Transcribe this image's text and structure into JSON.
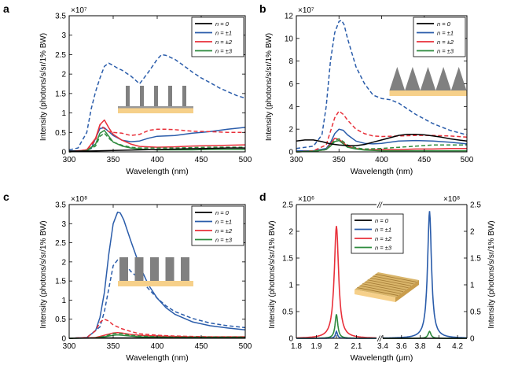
{
  "panels": {
    "a": {
      "letter": "a"
    },
    "b": {
      "letter": "b"
    },
    "c": {
      "letter": "c"
    },
    "d": {
      "letter": "d"
    }
  },
  "colors": {
    "n0": "#000000",
    "n1": "#2a5caa",
    "n2": "#e8303a",
    "n3": "#2e8b3e",
    "substrate": "#f6d08a",
    "structure": "#808080"
  },
  "chart_data": [
    {
      "id": "a",
      "type": "line",
      "xlabel": "Wavelength (nm)",
      "ylabel": "Intensity (photons/s/sr/1% BW)",
      "exponent": "×10⁷",
      "xlim": [
        300,
        500
      ],
      "ylim": [
        0,
        3.5
      ],
      "xticks": [
        "300",
        "350",
        "400",
        "450",
        "500"
      ],
      "yticks": [
        "0",
        "0.5",
        "1",
        "1.5",
        "2",
        "2.5",
        "3",
        "3.5"
      ],
      "legend": [
        "n = 0",
        "n = ±1",
        "n = ±2",
        "n = ±3"
      ],
      "legend_position": "top-right",
      "inset": "nanopillars",
      "series": [
        {
          "key": "n1",
          "dash": true,
          "x": [
            300,
            310,
            320,
            325,
            330,
            335,
            340,
            345,
            350,
            355,
            360,
            370,
            380,
            390,
            400,
            405,
            410,
            420,
            430,
            440,
            450,
            460,
            470,
            480,
            490,
            500
          ],
          "y": [
            0.05,
            0.1,
            0.5,
            1.1,
            1.55,
            1.9,
            2.2,
            2.28,
            2.22,
            2.15,
            2.1,
            1.95,
            1.75,
            2.05,
            2.38,
            2.5,
            2.48,
            2.38,
            2.22,
            2.05,
            1.9,
            1.78,
            1.65,
            1.55,
            1.45,
            1.38
          ]
        },
        {
          "key": "n1",
          "dash": false,
          "x": [
            300,
            315,
            325,
            330,
            335,
            340,
            345,
            350,
            360,
            370,
            380,
            390,
            400,
            420,
            440,
            460,
            480,
            500
          ],
          "y": [
            0.02,
            0.03,
            0.08,
            0.35,
            0.6,
            0.62,
            0.52,
            0.42,
            0.3,
            0.26,
            0.28,
            0.35,
            0.4,
            0.42,
            0.48,
            0.52,
            0.58,
            0.63
          ]
        },
        {
          "key": "n2",
          "dash": true,
          "x": [
            300,
            320,
            330,
            335,
            340,
            345,
            350,
            360,
            370,
            380,
            390,
            400,
            410,
            420,
            440,
            460,
            480,
            500
          ],
          "y": [
            0.0,
            0.05,
            0.3,
            0.7,
            0.6,
            0.52,
            0.5,
            0.48,
            0.42,
            0.45,
            0.55,
            0.58,
            0.58,
            0.57,
            0.53,
            0.52,
            0.5,
            0.5
          ]
        },
        {
          "key": "n2",
          "dash": false,
          "x": [
            300,
            320,
            330,
            335,
            340,
            345,
            350,
            360,
            370,
            380,
            400,
            420,
            440,
            460,
            480,
            500
          ],
          "y": [
            0.0,
            0.05,
            0.35,
            0.7,
            0.82,
            0.62,
            0.45,
            0.3,
            0.2,
            0.14,
            0.12,
            0.13,
            0.15,
            0.16,
            0.17,
            0.18
          ]
        },
        {
          "key": "n3",
          "dash": true,
          "x": [
            300,
            320,
            330,
            335,
            340,
            345,
            350,
            360,
            370,
            380,
            400,
            420,
            440,
            460,
            480,
            500
          ],
          "y": [
            0.0,
            0.03,
            0.15,
            0.4,
            0.48,
            0.35,
            0.25,
            0.17,
            0.12,
            0.1,
            0.1,
            0.1,
            0.11,
            0.12,
            0.12,
            0.12
          ]
        },
        {
          "key": "n3",
          "dash": false,
          "x": [
            300,
            320,
            330,
            335,
            340,
            345,
            350,
            360,
            370,
            380,
            400,
            420,
            440,
            460,
            480,
            500
          ],
          "y": [
            0.0,
            0.03,
            0.2,
            0.48,
            0.55,
            0.4,
            0.25,
            0.15,
            0.1,
            0.07,
            0.05,
            0.05,
            0.05,
            0.06,
            0.06,
            0.06
          ]
        },
        {
          "key": "n0",
          "dash": false,
          "x": [
            300,
            320,
            340,
            360,
            380,
            400,
            420,
            440,
            460,
            480,
            500
          ],
          "y": [
            0.02,
            0.02,
            0.03,
            0.04,
            0.05,
            0.06,
            0.07,
            0.08,
            0.09,
            0.1,
            0.1
          ]
        }
      ]
    },
    {
      "id": "b",
      "type": "line",
      "xlabel": "Wavelength (nm)",
      "ylabel": "Intensity (photons/s/sr/1% BW)",
      "exponent": "×10⁷",
      "xlim": [
        300,
        500
      ],
      "ylim": [
        0,
        12
      ],
      "xticks": [
        "300",
        "350",
        "400",
        "450",
        "500"
      ],
      "yticks": [
        "0",
        "2",
        "4",
        "6",
        "8",
        "10",
        "12"
      ],
      "legend": [
        "n = 0",
        "n = ±1",
        "n = ±2",
        "n = ±3"
      ],
      "legend_position": "top-right",
      "inset": "nanocones",
      "series": [
        {
          "key": "n1",
          "dash": true,
          "x": [
            300,
            320,
            330,
            335,
            340,
            345,
            350,
            353,
            356,
            360,
            370,
            380,
            390,
            400,
            410,
            420,
            430,
            440,
            450,
            460,
            470,
            480,
            490,
            500
          ],
          "y": [
            0.3,
            0.5,
            1.5,
            4.0,
            8.0,
            10.5,
            11.5,
            11.6,
            11.2,
            10.0,
            7.5,
            6.0,
            5.0,
            4.7,
            4.6,
            4.3,
            3.8,
            3.3,
            2.9,
            2.5,
            2.2,
            1.9,
            1.7,
            1.5
          ]
        },
        {
          "key": "n1",
          "dash": false,
          "x": [
            300,
            320,
            335,
            340,
            345,
            350,
            355,
            360,
            370,
            380,
            390,
            400,
            420,
            440,
            460,
            480,
            500
          ],
          "y": [
            0.1,
            0.1,
            0.3,
            0.8,
            1.6,
            2.0,
            1.9,
            1.5,
            0.95,
            0.75,
            0.7,
            0.75,
            0.95,
            1.0,
            0.95,
            0.85,
            0.7
          ]
        },
        {
          "key": "n2",
          "dash": true,
          "x": [
            300,
            320,
            335,
            340,
            345,
            350,
            355,
            360,
            370,
            380,
            390,
            400,
            420,
            440,
            460,
            480,
            500
          ],
          "y": [
            0.0,
            0.1,
            0.6,
            1.8,
            3.0,
            3.6,
            3.3,
            2.8,
            2.0,
            1.6,
            1.4,
            1.35,
            1.4,
            1.45,
            1.45,
            1.4,
            1.3
          ]
        },
        {
          "key": "n2",
          "dash": false,
          "x": [
            300,
            320,
            335,
            340,
            345,
            350,
            355,
            360,
            370,
            380,
            400,
            420,
            440,
            460,
            480,
            500
          ],
          "y": [
            0.0,
            0.05,
            0.2,
            0.7,
            1.2,
            1.1,
            0.8,
            0.5,
            0.3,
            0.2,
            0.2,
            0.2,
            0.25,
            0.25,
            0.3,
            0.3
          ]
        },
        {
          "key": "n3",
          "dash": true,
          "x": [
            300,
            320,
            335,
            340,
            345,
            350,
            355,
            360,
            370,
            380,
            400,
            420,
            440,
            460,
            480,
            500
          ],
          "y": [
            0.0,
            0.05,
            0.2,
            0.6,
            1.0,
            1.15,
            0.9,
            0.6,
            0.35,
            0.25,
            0.3,
            0.4,
            0.5,
            0.6,
            0.6,
            0.6
          ]
        },
        {
          "key": "n3",
          "dash": false,
          "x": [
            300,
            320,
            335,
            340,
            345,
            350,
            355,
            360,
            370,
            380,
            400,
            420,
            440,
            460,
            480,
            500
          ],
          "y": [
            0.0,
            0.05,
            0.2,
            0.5,
            0.9,
            1.0,
            0.7,
            0.4,
            0.25,
            0.15,
            0.1,
            0.1,
            0.1,
            0.1,
            0.1,
            0.1
          ]
        },
        {
          "key": "n0",
          "dash": false,
          "x": [
            300,
            310,
            320,
            330,
            340,
            350,
            360,
            370,
            380,
            390,
            400,
            410,
            420,
            430,
            440,
            450,
            460,
            470,
            480,
            490,
            500
          ],
          "y": [
            0.95,
            1.05,
            1.05,
            0.9,
            0.7,
            0.6,
            0.55,
            0.55,
            0.65,
            0.85,
            1.05,
            1.25,
            1.45,
            1.55,
            1.55,
            1.5,
            1.4,
            1.3,
            1.15,
            1.05,
            0.95
          ]
        }
      ]
    },
    {
      "id": "c",
      "type": "line",
      "xlabel": "Wavelength (nm)",
      "ylabel": "Intensity (photons/s/sr/1% BW)",
      "exponent": "×10⁸",
      "xlim": [
        300,
        500
      ],
      "ylim": [
        0,
        3.5
      ],
      "xticks": [
        "300",
        "350",
        "400",
        "450",
        "500"
      ],
      "yticks": [
        "0",
        "0.5",
        "1",
        "1.5",
        "2",
        "2.5",
        "3",
        "3.5"
      ],
      "legend": [
        "n = 0",
        "n = ±1",
        "n = ±2",
        "n = ±3"
      ],
      "legend_position": "top-right",
      "inset": "nanowalls",
      "series": [
        {
          "key": "n1",
          "dash": false,
          "x": [
            300,
            320,
            330,
            335,
            340,
            345,
            350,
            355,
            358,
            362,
            370,
            380,
            390,
            400,
            410,
            420,
            440,
            460,
            480,
            500
          ],
          "y": [
            0.0,
            0.02,
            0.2,
            0.55,
            1.2,
            2.2,
            3.0,
            3.3,
            3.28,
            3.1,
            2.55,
            1.9,
            1.4,
            1.05,
            0.8,
            0.63,
            0.43,
            0.33,
            0.27,
            0.22
          ]
        },
        {
          "key": "n1",
          "dash": true,
          "x": [
            300,
            320,
            335,
            340,
            345,
            350,
            355,
            360,
            365,
            370,
            380,
            390,
            400,
            410,
            420,
            440,
            460,
            480,
            500
          ],
          "y": [
            0.0,
            0.02,
            0.3,
            0.7,
            1.3,
            1.9,
            2.05,
            2.0,
            1.9,
            1.75,
            1.55,
            1.3,
            1.05,
            0.85,
            0.7,
            0.52,
            0.4,
            0.33,
            0.28
          ]
        },
        {
          "key": "n2",
          "dash": true,
          "x": [
            300,
            320,
            330,
            335,
            340,
            345,
            350,
            355,
            360,
            370,
            380,
            400,
            420,
            440,
            460,
            480,
            500
          ],
          "y": [
            0.0,
            0.02,
            0.2,
            0.42,
            0.5,
            0.45,
            0.35,
            0.3,
            0.25,
            0.18,
            0.12,
            0.08,
            0.06,
            0.05,
            0.04,
            0.04,
            0.04
          ]
        },
        {
          "key": "n2",
          "dash": false,
          "x": [
            300,
            330,
            340,
            350,
            355,
            360,
            370,
            380,
            400,
            420,
            440,
            460,
            480,
            500
          ],
          "y": [
            0.0,
            0.02,
            0.08,
            0.14,
            0.15,
            0.14,
            0.1,
            0.08,
            0.06,
            0.05,
            0.04,
            0.04,
            0.04,
            0.04
          ]
        },
        {
          "key": "n3",
          "dash": true,
          "x": [
            300,
            330,
            340,
            350,
            355,
            360,
            370,
            380,
            400,
            420,
            440,
            460,
            480,
            500
          ],
          "y": [
            0.0,
            0.01,
            0.05,
            0.12,
            0.13,
            0.12,
            0.08,
            0.06,
            0.04,
            0.03,
            0.03,
            0.03,
            0.03,
            0.03
          ]
        },
        {
          "key": "n3",
          "dash": false,
          "x": [
            300,
            330,
            340,
            350,
            355,
            360,
            370,
            380,
            400,
            420,
            440,
            460,
            480,
            500
          ],
          "y": [
            0.0,
            0.01,
            0.04,
            0.08,
            0.09,
            0.08,
            0.06,
            0.04,
            0.03,
            0.02,
            0.02,
            0.02,
            0.02,
            0.02
          ]
        },
        {
          "key": "n0",
          "dash": false,
          "x": [
            300,
            350,
            400,
            450,
            500
          ],
          "y": [
            0.0,
            0.01,
            0.01,
            0.01,
            0.01
          ]
        }
      ]
    },
    {
      "id": "d",
      "type": "line",
      "xlabel": "Wavelength (μm)",
      "ylabel_left": "Intensity (photons/s/sr/1% BW)",
      "ylabel_right": "Intensity (photons/s/sr/1% BW)",
      "exponent_left": "×10⁶",
      "exponent_right": "×10⁸",
      "ylim": [
        0,
        2.5
      ],
      "xlim_left": [
        1.8,
        2.2
      ],
      "xlim_right": [
        3.4,
        4.3
      ],
      "xticks_left": [
        "1.8",
        "1.9",
        "2",
        "2.1"
      ],
      "xticks_right": [
        "3.4",
        "3.6",
        "3.8",
        "4",
        "4.2"
      ],
      "yticks": [
        "0",
        "0.5",
        "1",
        "1.5",
        "2",
        "2.5"
      ],
      "axis_break": "//",
      "legend": [
        "n = 0",
        "n = ±1",
        "n = ±2",
        "n = ±3"
      ],
      "legend_position": "top-center",
      "inset": "grating-slab",
      "series": [
        {
          "key": "n2",
          "dash": false,
          "axis": "left",
          "peak": {
            "center": 2.0,
            "height": 2.1,
            "width": 0.013
          }
        },
        {
          "key": "n3",
          "dash": false,
          "axis": "left",
          "peak": {
            "center": 2.0,
            "height": 0.45,
            "width": 0.008
          }
        },
        {
          "key": "n1",
          "dash": false,
          "axis": "left",
          "peak": {
            "center": 2.0,
            "height": 0.13,
            "width": 0.006
          }
        },
        {
          "key": "n1",
          "dash": false,
          "axis": "right",
          "peak": {
            "center": 3.9,
            "height": 2.38,
            "width": 0.025
          }
        },
        {
          "key": "n3",
          "dash": false,
          "axis": "right",
          "peak": {
            "center": 3.9,
            "height": 0.13,
            "width": 0.018
          }
        },
        {
          "key": "n0",
          "dash": false,
          "axis": "right",
          "peak": {
            "center": 3.9,
            "height": 0.0,
            "width": 0.02
          }
        }
      ]
    }
  ]
}
